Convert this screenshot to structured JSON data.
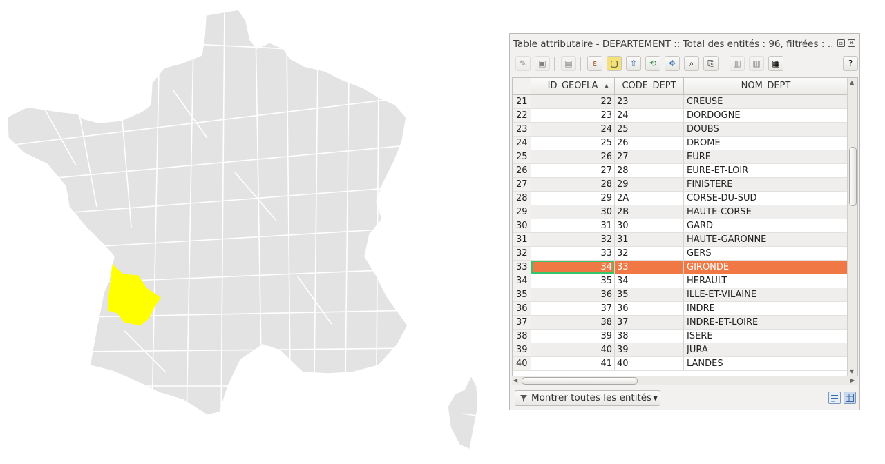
{
  "map": {
    "highlight_color": "#ffff00",
    "dept_color": "#e3e3e3",
    "border_color": "#ffffff",
    "highlighted_department": "GIRONDE"
  },
  "window": {
    "title": "Table attributaire - DEPARTEMENT :: Total des entités : 96, filtrées : …",
    "restore_icon": "restore-icon",
    "close_icon": "close-icon"
  },
  "toolbar": {
    "help_label": "?",
    "tools": [
      "edit-pencil-icon",
      "save-edits-icon",
      "delete-feature-icon",
      "select-by-expression-icon",
      "deselect-all-icon",
      "move-selection-top-icon",
      "invert-selection-icon",
      "pan-to-selected-icon",
      "zoom-to-selected-icon",
      "copy-selection-icon",
      "new-field-icon",
      "delete-field-icon",
      "field-calculator-icon"
    ]
  },
  "table": {
    "columns": [
      "ID_GEOFLA",
      "CODE_DEPT",
      "NOM_DEPT"
    ],
    "sort_column": "ID_GEOFLA",
    "selected_color": "#ef7845",
    "rows": [
      {
        "row": "21",
        "id": "22",
        "code": "23",
        "nom": "CREUSE"
      },
      {
        "row": "22",
        "id": "23",
        "code": "24",
        "nom": "DORDOGNE"
      },
      {
        "row": "23",
        "id": "24",
        "code": "25",
        "nom": "DOUBS"
      },
      {
        "row": "24",
        "id": "25",
        "code": "26",
        "nom": "DROME"
      },
      {
        "row": "25",
        "id": "26",
        "code": "27",
        "nom": "EURE"
      },
      {
        "row": "26",
        "id": "27",
        "code": "28",
        "nom": "EURE-ET-LOIR"
      },
      {
        "row": "27",
        "id": "28",
        "code": "29",
        "nom": "FINISTERE"
      },
      {
        "row": "28",
        "id": "29",
        "code": "2A",
        "nom": "CORSE-DU-SUD"
      },
      {
        "row": "29",
        "id": "30",
        "code": "2B",
        "nom": "HAUTE-CORSE"
      },
      {
        "row": "30",
        "id": "31",
        "code": "30",
        "nom": "GARD"
      },
      {
        "row": "31",
        "id": "32",
        "code": "31",
        "nom": "HAUTE-GARONNE"
      },
      {
        "row": "32",
        "id": "33",
        "code": "32",
        "nom": "GERS"
      },
      {
        "row": "33",
        "id": "34",
        "code": "33",
        "nom": "GIRONDE",
        "selected": true
      },
      {
        "row": "34",
        "id": "35",
        "code": "34",
        "nom": "HERAULT"
      },
      {
        "row": "35",
        "id": "36",
        "code": "35",
        "nom": "ILLE-ET-VILAINE"
      },
      {
        "row": "36",
        "id": "37",
        "code": "36",
        "nom": "INDRE"
      },
      {
        "row": "37",
        "id": "38",
        "code": "37",
        "nom": "INDRE-ET-LOIRE"
      },
      {
        "row": "38",
        "id": "39",
        "code": "38",
        "nom": "ISERE"
      },
      {
        "row": "39",
        "id": "40",
        "code": "39",
        "nom": "JURA"
      },
      {
        "row": "40",
        "id": "41",
        "code": "40",
        "nom": "LANDES"
      }
    ]
  },
  "footer": {
    "filter_label": "Montrer toutes les entités",
    "filter_icon": "filter-icon",
    "dropdown_icon": "chevron-down-icon",
    "form_view_icon": "form-view-icon",
    "table_view_icon": "table-view-icon"
  }
}
